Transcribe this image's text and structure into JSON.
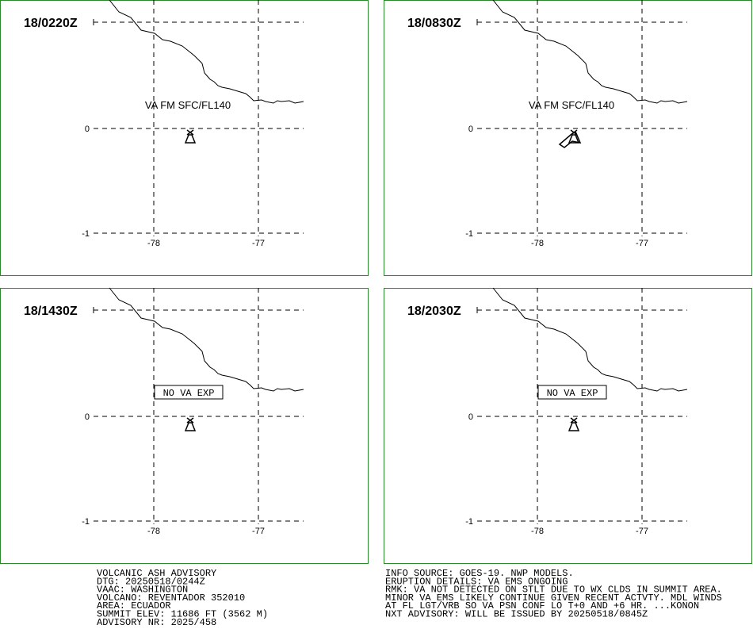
{
  "panels": [
    {
      "time": "18/0220Z",
      "label": "VA FM SFC/FL140"
    },
    {
      "time": "18/0830Z",
      "label": "VA FM SFC/FL140"
    },
    {
      "time": "18/1430Z",
      "box_label": "NO VA EXP"
    },
    {
      "time": "18/2030Z",
      "box_label": "NO VA EXP"
    }
  ],
  "lat_ticks": [
    0,
    -1
  ],
  "lon_ticks": [
    -78,
    -77
  ],
  "advisory_left": [
    "VOLCANIC ASH ADVISORY",
    "DTG: 20250518/0244Z",
    "VAAC: WASHINGTON",
    "VOLCANO: REVENTADOR 352010",
    "AREA: ECUADOR",
    "SUMMIT ELEV: 11686 FT (3562 M)",
    "ADVISORY NR: 2025/458"
  ],
  "advisory_right": [
    "INFO SOURCE: GOES-19. NWP MODELS.",
    "ERUPTION DETAILS: VA EMS ONGOING",
    "RMK: VA NOT DETECTED ON STLT DUE TO WX CLDS IN SUMMIT AREA.",
    "MINOR VA EMS LIKELY CONTINUE GIVEN RECENT ACTVTY. MDL WINDS",
    "AT FL LGT/VRB SO VA PSN CONF LO T+0 AND +6 HR. ...KONON",
    "NXT ADVISORY: WILL BE ISSUED BY 20250518/0845Z"
  ]
}
